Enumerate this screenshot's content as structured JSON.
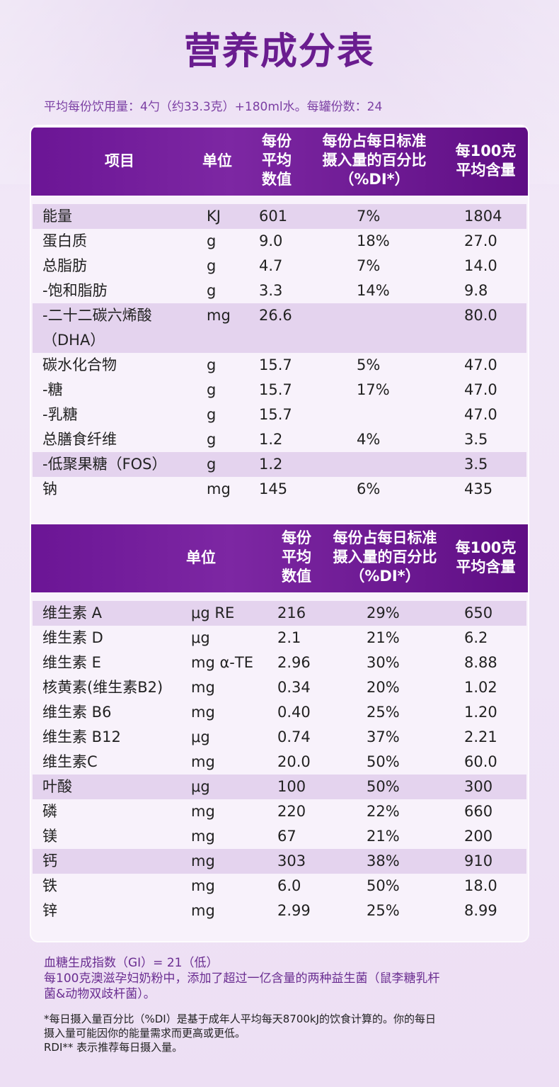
{
  "title": "营养成分表",
  "serving_info": "平均每份饮用量：4勺（约33.3克）+180ml水。每罐份数：24",
  "table1": {
    "headers": {
      "item": "项目",
      "unit": "单位",
      "per_serving": [
        "每份",
        "平均",
        "数值"
      ],
      "percent_di": [
        "每份占每日标准",
        "摄入量的百分比",
        "（%DI*）"
      ],
      "per_100g": [
        "每100克",
        "平均含量"
      ]
    },
    "rows": [
      {
        "name": "能量",
        "unit": "KJ",
        "value": "601",
        "pct": "7%",
        "per100": "1804",
        "highlight": true
      },
      {
        "name": "蛋白质",
        "unit": "g",
        "value": "9.0",
        "pct": "18%",
        "per100": "27.0",
        "highlight": false
      },
      {
        "name": "总脂肪",
        "unit": "g",
        "value": "4.7",
        "pct": "7%",
        "per100": "14.0",
        "highlight": false
      },
      {
        "name": " -饱和脂肪",
        "unit": "g",
        "value": "3.3",
        "pct": "14%",
        "per100": "9.8",
        "highlight": false
      },
      {
        "name": " -二十二碳六烯酸",
        "name2": " （DHA）",
        "unit": "mg",
        "value": "26.6",
        "pct": "",
        "per100": "80.0",
        "highlight": true
      },
      {
        "name": "碳水化合物",
        "unit": "g",
        "value": "15.7",
        "pct": "5%",
        "per100": "47.0",
        "highlight": false
      },
      {
        "name": " -糖",
        "unit": "g",
        "value": "15.7",
        "pct": "17%",
        "per100": "47.0",
        "highlight": false
      },
      {
        "name": " -乳糖",
        "unit": "g",
        "value": "15.7",
        "pct": "",
        "per100": "47.0",
        "highlight": false
      },
      {
        "name": "总膳食纤维",
        "unit": "g",
        "value": "1.2",
        "pct": "4%",
        "per100": "3.5",
        "highlight": false
      },
      {
        "name": " -低聚果糖（FOS）",
        "unit": "g",
        "value": "1.2",
        "pct": "",
        "per100": "3.5",
        "highlight": true
      },
      {
        "name": "钠",
        "unit": "mg",
        "value": "145",
        "pct": "6%",
        "per100": "435",
        "highlight": false
      }
    ]
  },
  "table2": {
    "headers": {
      "unit": "单位",
      "per_serving": [
        "每份",
        "平均",
        "数值"
      ],
      "percent_di": [
        "每份占每日标准",
        "摄入量的百分比",
        "（%DI*）"
      ],
      "per_100g": [
        "每100克",
        "平均含量"
      ]
    },
    "rows": [
      {
        "name": "维生素 A",
        "unit": "μg RE",
        "value": "216",
        "pct": "29%",
        "per100": "650",
        "highlight": true
      },
      {
        "name": "维生素 D",
        "unit": "μg",
        "value": "2.1",
        "pct": "21%",
        "per100": "6.2",
        "highlight": false
      },
      {
        "name": "维生素 E",
        "unit": "mg α-TE",
        "value": "2.96",
        "pct": "30%",
        "per100": "8.88",
        "highlight": false
      },
      {
        "name": "核黄素(维生素B2)",
        "unit": "mg",
        "value": "0.34",
        "pct": "20%",
        "per100": "1.02",
        "highlight": false
      },
      {
        "name": "维生素 B6",
        "unit": "mg",
        "value": "0.40",
        "pct": "25%",
        "per100": "1.20",
        "highlight": false
      },
      {
        "name": "维生素 B12",
        "unit": "μg",
        "value": "0.74",
        "pct": "37%",
        "per100": "2.21",
        "highlight": false
      },
      {
        "name": "维生素C",
        "unit": "mg",
        "value": "20.0",
        "pct": "50%",
        "per100": "60.0",
        "highlight": false
      },
      {
        "name": "叶酸",
        "unit": "μg",
        "value": "100",
        "pct": "50%",
        "per100": "300",
        "highlight": true
      },
      {
        "name": "磷",
        "unit": "mg",
        "value": "220",
        "pct": "22%",
        "per100": "660",
        "highlight": false
      },
      {
        "name": "镁",
        "unit": "mg",
        "value": "67",
        "pct": "21%",
        "per100": "200",
        "highlight": false
      },
      {
        "name": "钙",
        "unit": "mg",
        "value": "303",
        "pct": "38%",
        "per100": "910",
        "highlight": true
      },
      {
        "name": "铁",
        "unit": "mg",
        "value": "6.0",
        "pct": "50%",
        "per100": "18.0",
        "highlight": false
      },
      {
        "name": "锌",
        "unit": "mg",
        "value": "2.99",
        "pct": "25%",
        "per100": "8.99",
        "highlight": false
      }
    ]
  },
  "notes": {
    "gi": "血糖生成指数（GI）= 21（低）",
    "probiotic_1": "每100克澳滋孕妇奶粉中，添加了超过一亿含量的两种益生菌（鼠李糖乳杆",
    "probiotic_2": "菌&动物双歧杆菌）。"
  },
  "footnotes": {
    "line1": "*每日摄入量百分比（%DI）是基于成年人平均每天8700kJ的饮食计算的。你的每日",
    "line2": "摄入量可能因你的能量需求而更高或更低。",
    "line3": "RDI** 表示推荐每日摄入量。"
  },
  "colors": {
    "title": "#6a1d8f",
    "header_bg": "#6b1595",
    "row_highlight": "#e4d3ee",
    "note_text": "#6a2d90"
  }
}
